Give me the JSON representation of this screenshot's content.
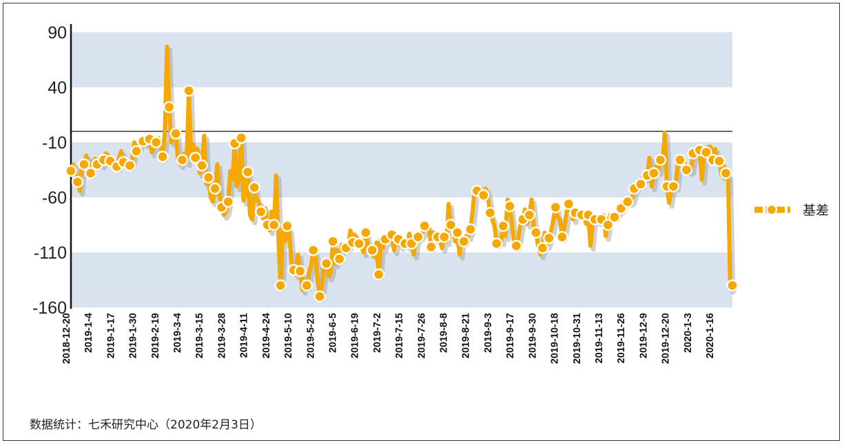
{
  "chart_data": {
    "type": "line",
    "ylim": [
      -160,
      90
    ],
    "yticks": [
      90,
      40,
      -10,
      -60,
      -110,
      -160
    ],
    "x_tick_labels": [
      "2018-12-20",
      "2019-1-4",
      "2019-1-17",
      "2019-1-30",
      "2019-2-19",
      "2019-3-4",
      "2019-3-15",
      "2019-3-28",
      "2019-4-11",
      "2019-4-24",
      "2019-5-10",
      "2019-5-23",
      "2019-6-5",
      "2019-6-19",
      "2019-7-2",
      "2019-7-15",
      "2019-7-26",
      "2019-8-8",
      "2019-8-21",
      "2019-9-3",
      "2019-9-17",
      "2019-9-30",
      "2019-10-18",
      "2019-10-31",
      "2019-11-13",
      "2019-11-26",
      "2019-12-9",
      "2019-12-20",
      "2020-1-3",
      "2020-1-16"
    ],
    "reference_line": 0,
    "grid_bands": true,
    "legend_position": "right",
    "series": [
      {
        "name": "基差",
        "color": "#f5a800",
        "marker_every": 3,
        "values": [
          -36,
          -30,
          -38,
          -46,
          -54,
          -27,
          -30,
          -22,
          -34,
          -38,
          -28,
          -25,
          -30,
          -25,
          -30,
          -26,
          -20,
          -22,
          -27,
          -25,
          -28,
          -32,
          -24,
          -18,
          -28,
          -26,
          -29,
          -31,
          -26,
          -10,
          -18,
          -14,
          -8,
          -9,
          -11,
          -4,
          -7,
          -19,
          -15,
          -10,
          -6,
          -11,
          -23,
          -2,
          77,
          22,
          -10,
          -6,
          -2,
          -25,
          -30,
          -26,
          -20,
          -28,
          37,
          -22,
          -12,
          -24,
          -16,
          -38,
          -31,
          -4,
          -48,
          -42,
          -60,
          -64,
          -52,
          -30,
          -56,
          -69,
          -76,
          -73,
          -64,
          -36,
          -44,
          -11,
          -50,
          -43,
          -6,
          -63,
          -55,
          -37,
          -76,
          -80,
          -51,
          -62,
          -64,
          -73,
          -79,
          -70,
          -85,
          -90,
          -73,
          -85,
          -40,
          -96,
          -140,
          -88,
          -100,
          -86,
          -91,
          -120,
          -126,
          -130,
          -112,
          -127,
          -144,
          -135,
          -140,
          -129,
          -122,
          -108,
          -113,
          -136,
          -150,
          -140,
          -120,
          -120,
          -132,
          -128,
          -100,
          -120,
          -108,
          -116,
          -103,
          -106,
          -106,
          -104,
          -90,
          -101,
          -94,
          -97,
          -102,
          -104,
          -110,
          -92,
          -103,
          -110,
          -108,
          -114,
          -101,
          -130,
          -98,
          -106,
          -98,
          -100,
          -96,
          -94,
          -108,
          -100,
          -98,
          -104,
          -99,
          -102,
          -104,
          -93,
          -102,
          -112,
          -99,
          -96,
          -95,
          -92,
          -86,
          -86,
          -88,
          -105,
          -92,
          -94,
          -96,
          -99,
          -106,
          -96,
          -100,
          -66,
          -85,
          -88,
          -100,
          -92,
          -112,
          -96,
          -100,
          -95,
          -95,
          -89,
          -72,
          -52,
          -54,
          -52,
          -52,
          -58,
          -52,
          -59,
          -74,
          -80,
          -86,
          -102,
          -99,
          -100,
          -86,
          -95,
          -62,
          -68,
          -84,
          -102,
          -104,
          -96,
          -84,
          -80,
          -71,
          -84,
          -76,
          -62,
          -86,
          -92,
          -104,
          -112,
          -106,
          -92,
          -103,
          -97,
          -90,
          -80,
          -69,
          -78,
          -80,
          -96,
          -88,
          -74,
          -66,
          -71,
          -80,
          -74,
          -76,
          -76,
          -76,
          -77,
          -84,
          -76,
          -104,
          -83,
          -80,
          -81,
          -82,
          -80,
          -76,
          -95,
          -85,
          -76,
          -76,
          -78,
          -74,
          -72,
          -70,
          -64,
          -64,
          -64,
          -64,
          -62,
          -52,
          -50,
          -48,
          -48,
          -42,
          -42,
          -40,
          -24,
          -50,
          -38,
          -32,
          -36,
          -26,
          -30,
          -1,
          -50,
          -65,
          -53,
          -50,
          -50,
          -28,
          -26,
          -28,
          -28,
          -35,
          -36,
          -35,
          -20,
          -22,
          -18,
          -17,
          -44,
          -17,
          -19,
          -14,
          -14,
          -26,
          -16,
          -28,
          -27,
          -40,
          -31,
          -38,
          -40,
          -143,
          -140
        ]
      }
    ]
  },
  "footer": {
    "source_note": "数据统计：七禾研究中心（2020年2月3日）"
  }
}
